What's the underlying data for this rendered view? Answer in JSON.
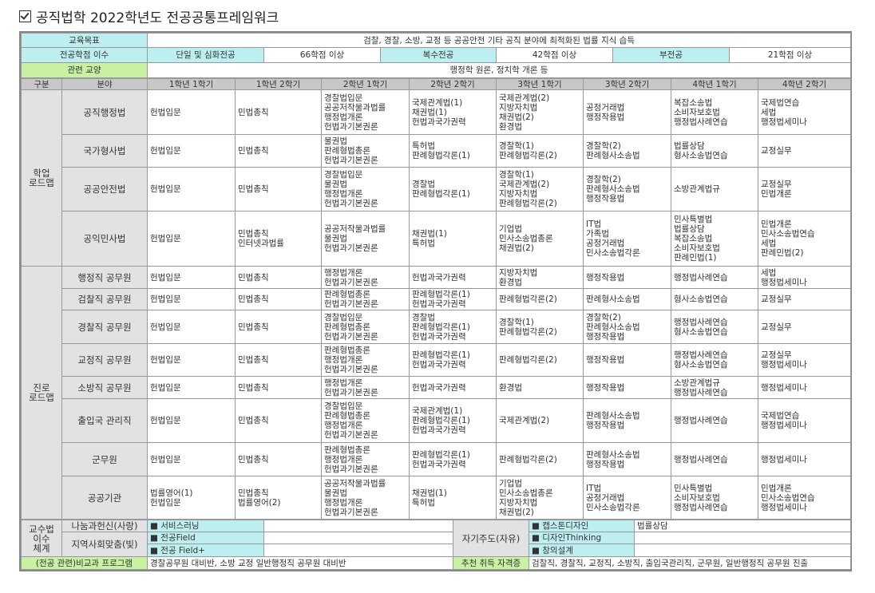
{
  "title": "공직법학 2022학년도 전공공통프레임워크",
  "top": {
    "goal_label": "교육목표",
    "goal": "검찰, 경찰, 소방, 교정 등 공공안전 기타 공직 분야에 최적화된 법률 지식 습득",
    "credit_label": "전공학점 이수",
    "single_label": "단일 및 심화전공",
    "single_value": "66학점 이상",
    "double_label": "복수전공",
    "double_value": "42학점 이상",
    "minor_label": "부전공",
    "minor_value": "21학점 이상",
    "liberal_label": "관련 교양",
    "liberal_value": "행정학 원론, 정치학 개론 등"
  },
  "header": [
    "구분",
    "분야",
    "1학년 1학기",
    "1학년 2학기",
    "2학년 1학기",
    "2학년 2학기",
    "3학년 1학기",
    "3학년 2학기",
    "4학년 1학기",
    "4학년 2학기"
  ],
  "groups": [
    {
      "label": "학업\n로드맵",
      "rows": [
        {
          "field": "공직행정법",
          "h": 56,
          "cells": [
            "헌법입문",
            "민법총칙",
            "경찰법입문\n공공저작물과법률\n행정법개론\n헌법과기본권론",
            "국제관계법(1)\n채권법(1)\n헌법과국가권력",
            "국제관계법(2)\n지방자치법\n채권법(2)\n환경법",
            "공정거래법\n행정작용법",
            "복잡소송법\n소비자보호법\n행정법사례연습",
            "국제법연습\n세법\n행정법세미나"
          ]
        },
        {
          "field": "국가형사법",
          "h": 41,
          "cells": [
            "헌법입문",
            "민법총칙",
            "물권법\n판례형법총론\n헌법과기본권론",
            "특허법\n판례형법각론(1)",
            "경찰학(1)\n판례형법각론(2)",
            "경찰학(2)\n판례형사소송법",
            "법률상담\n형사소송법연습",
            "교정실무"
          ]
        },
        {
          "field": "공공안전법",
          "h": 55,
          "cells": [
            "헌법입문",
            "민법총칙",
            "경찰법입문\n물권법\n행정법개론\n헌법과기본권론",
            "경찰법\n판례형법각론(1)",
            "경찰학(1)\n국제관계법(2)\n지방자치법\n판례형법각론(2)",
            "경찰학(2)\n판례형사소송법\n행정작용법",
            "소방관계법규",
            "교정실무\n민법개론"
          ]
        },
        {
          "field": "공익민사법",
          "h": 69,
          "cells": [
            "헌법입문",
            "민법총칙\n인터넷과법률",
            "공공저작물과법률\n물권법\n헌법과기본권론",
            "채권법(1)\n특허법",
            "기업법\n민사소송법총론\n채권법(2)",
            "IT법\n가족법\n공정거래법\n민사소송법각론",
            "민사특별법\n법률상담\n복잡소송법\n소비자보호법\n판례민법(1)",
            "민법개론\n민사소송법연습\n세법\n판례민법(2)"
          ]
        }
      ]
    },
    {
      "label": "진로\n로드맵",
      "rows": [
        {
          "field": "행정직 공무원",
          "h": 28,
          "cells": [
            "헌법입문",
            "민법총칙",
            "행정법개론\n헌법과기본권론",
            "헌법과국가권력",
            "지방자치법\n환경법",
            "행정작용법",
            "행정법사례연습",
            "세법\n행정법세미나"
          ]
        },
        {
          "field": "검찰직 공무원",
          "h": 27,
          "cells": [
            "헌법입문",
            "민법총칙",
            "판례형법총론\n헌법과기본권론",
            "판례형법각론(1)\n헌법과국가권력",
            "판례형법각론(2)",
            "판례형사소송법",
            "형사소송법연습",
            "교정실무"
          ]
        },
        {
          "field": "경찰직 공무원",
          "h": 42,
          "cells": [
            "헌법입문",
            "민법총칙",
            "경찰법입문\n판례형법총론\n헌법과기본권론",
            "경찰법\n판례형법각론(1)\n헌법과국가권력",
            "경찰학(1)\n판례형법각론(2)",
            "경찰학(2)\n판례형사소송법\n행정작용법",
            "행정법사례연습\n형사소송법연습",
            "교정실무"
          ]
        },
        {
          "field": "교정직 공무원",
          "h": 41,
          "cells": [
            "헌법입문",
            "민법총칙",
            "판례형법총론\n행정법개론\n헌법과기본권론",
            "판례형법각론(1)\n헌법과국가권력",
            "판례형법각론(2)",
            "행정작용법",
            "행정법사례연습\n형사소송법연습",
            "교정실무\n행정법세미나"
          ]
        },
        {
          "field": "소방직 공무원",
          "h": 28,
          "cells": [
            "헌법입문",
            "민법총칙",
            "행정법개론\n헌법과기본권론",
            "헌법과국가권력",
            "환경법",
            "행정작용법",
            "소방관계법규\n행정법사례연습",
            "행정법세미나"
          ]
        },
        {
          "field": "출입국 관리직",
          "h": 55,
          "cells": [
            "헌법입문",
            "민법총칙",
            "경찰법입문\n판례형법총론\n행정법개론\n헌법과기본권론",
            "국제관계법(1)\n판례형법각론(1)\n헌법과국가권력",
            "국제관계법(2)",
            "판례형사소송법\n행정작용법",
            "행정법사례연습",
            "국제법연습\n행정법세미나"
          ]
        },
        {
          "field": "군무원",
          "h": 42,
          "cells": [
            "헌법입문",
            "민법총칙",
            "판례형법총론\n행정법개론\n헌법과기본권론",
            "판례형법각론(1)\n헌법과국가권력",
            "판례형법각론(2)",
            "판례형사소송법\n행정작용법",
            "행정법사례연습",
            "행정법세미나"
          ]
        },
        {
          "field": "공공기관",
          "h": 54,
          "cells": [
            "법률영어(1)\n헌법입문",
            "민법총칙\n법률영어(2)",
            "공공저작물과법률\n물권법\n행정법개론\n헌법과기본권론",
            "채권법(1)\n특허법",
            "기업법\n민사소송법총론\n지방자치법\n채권법(2)",
            "IT법\n공정거래법\n민사소송법각론",
            "민사특별법\n소비자보호법\n행정법사례연습",
            "민법개론\n민사소송법연습\n행정법세미나"
          ]
        }
      ]
    }
  ],
  "bottom": {
    "system_label": "교수법\n이수\n체계",
    "sharing_label": "나눔과헌신(사랑)",
    "sharing_item": "서비스러닝",
    "local_label": "지역사회맞춤(빛)",
    "local_items": [
      "전공Field",
      "전공 Field+"
    ],
    "self_label": "자기주도(자유)",
    "self_items": [
      "캡스톤디자인",
      "디자인Thinking",
      "창의설계"
    ],
    "self_note": "법률상담",
    "extra_label": "(전공 관련)비교과 프로그램",
    "extra_value": "경찰공무원 대비반, 소방 교정 일반행정직 공무원 대비반",
    "cert_label": "추천 취득 자격증",
    "cert_value": "검찰직, 경찰직, 교정직, 소방직, 출입국관리직, 군무원, 일반행정직 공무원 진출"
  },
  "colors": {
    "cyan": "#bdeef0",
    "green": "#c9f1a4",
    "header_gray": "#c8c8c8",
    "label_gray": "#e2e2e4"
  }
}
